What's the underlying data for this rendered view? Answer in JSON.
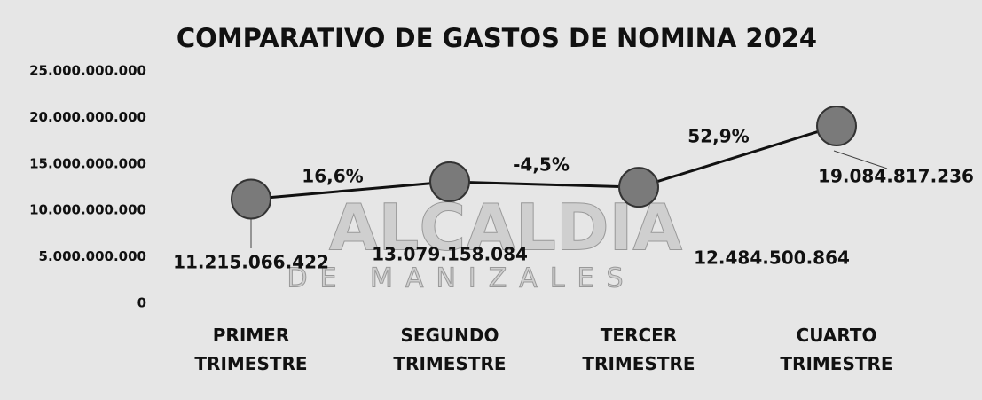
{
  "chart_data": {
    "type": "line",
    "title": "COMPARATIVO DE GASTOS DE NOMINA 2024",
    "watermark": [
      "ALCALDIA",
      "DE MANIZALES"
    ],
    "categories": [
      "PRIMER TRIMESTRE",
      "SEGUNDO TRIMESTRE",
      "TERCER TRIMESTRE",
      "CUARTO TRIMESTRE"
    ],
    "values": [
      11215066422,
      13079158084,
      12484500864,
      19084817236
    ],
    "value_labels": [
      "11.215.066.422",
      "13.079.158.084",
      "12.484.500.864",
      "19.084.817.236"
    ],
    "annotations": [
      "16,6%",
      "-4,5%",
      "52,9%"
    ],
    "color": "#7a7a7a",
    "ylim": [
      0,
      25000000000
    ],
    "yticks": [
      0,
      {
        "value": 5000000000,
        "label": "5.000.000.000"
      },
      {
        "value": 10000000000,
        "label": "10.000.000.000"
      },
      {
        "value": 15000000000,
        "label": "15.000.000.000"
      },
      {
        "value": 20000000000,
        "label": "20.000.000.000"
      },
      {
        "value": 25000000000,
        "label": "25.000.000.000"
      }
    ],
    "grid": false
  }
}
